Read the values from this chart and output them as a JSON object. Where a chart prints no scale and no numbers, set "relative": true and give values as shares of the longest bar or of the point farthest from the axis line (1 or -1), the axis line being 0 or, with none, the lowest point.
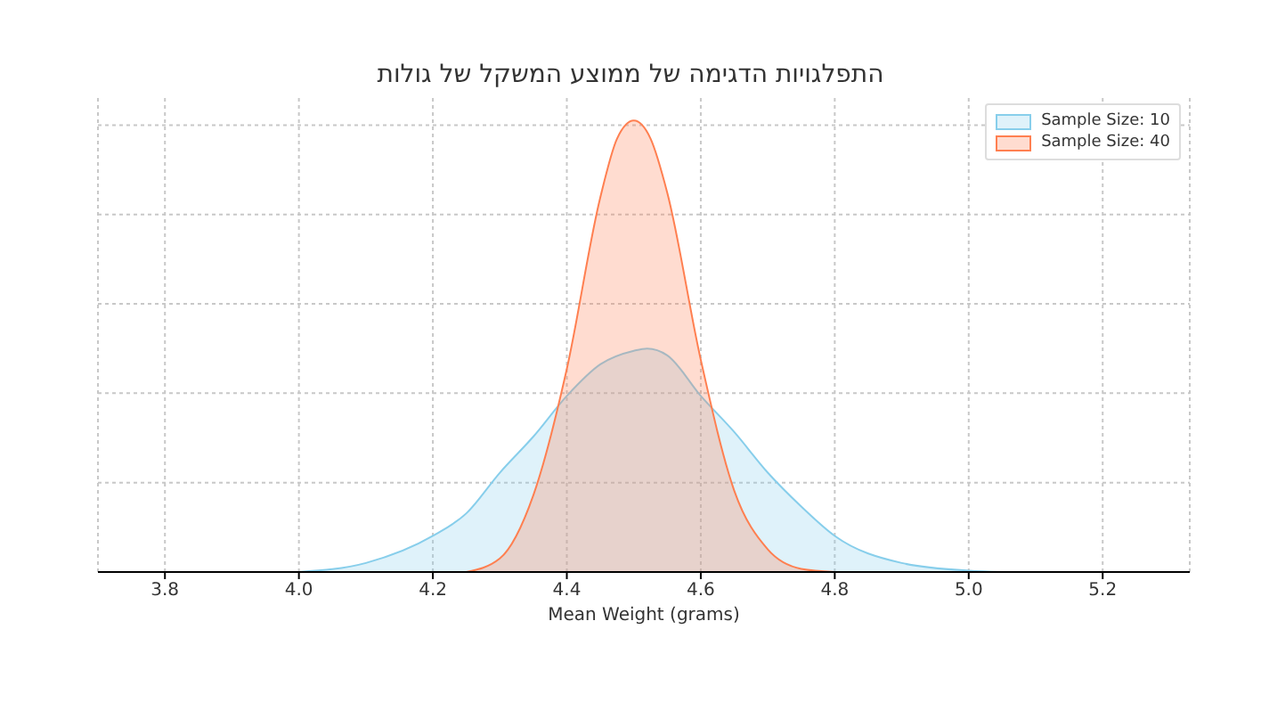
{
  "chart_data": {
    "type": "area",
    "title": "התפלגויות הדגימה של ממוצע המשקל של גולות",
    "xlabel": "Mean Weight (grams)",
    "relative": true,
    "xlim": [
      3.7,
      5.33
    ],
    "xticks": [
      3.8,
      {
        "value": 4,
        "label": "4.0"
      },
      4.2,
      4.4,
      4.6,
      4.8,
      {
        "value": 5,
        "label": "5.0"
      },
      5.2
    ],
    "grid": true,
    "legend": "top right",
    "series": [
      {
        "name": "Sample Size: 10",
        "color": "#87ceeb",
        "x": [
          4.0,
          4.1,
          4.2,
          4.25,
          4.3,
          4.35,
          4.4,
          4.45,
          4.5,
          4.52,
          4.55,
          4.6,
          4.65,
          4.7,
          4.75,
          4.8,
          4.9,
          5.0,
          5.05
        ],
        "values": [
          0,
          0.02,
          0.08,
          0.13,
          0.22,
          0.3,
          0.39,
          0.46,
          0.49,
          0.495,
          0.48,
          0.39,
          0.31,
          0.22,
          0.145,
          0.08,
          0.02,
          0.003,
          0
        ]
      },
      {
        "name": "Sample Size: 40",
        "color": "#ff7f50",
        "x": [
          4.25,
          4.3,
          4.35,
          4.4,
          4.45,
          4.475,
          4.5,
          4.525,
          4.55,
          4.6,
          4.65,
          4.7,
          4.75,
          4.8
        ],
        "values": [
          0,
          0.03,
          0.17,
          0.45,
          0.83,
          0.96,
          1,
          0.96,
          0.84,
          0.47,
          0.18,
          0.05,
          0.007,
          0
        ]
      }
    ]
  }
}
